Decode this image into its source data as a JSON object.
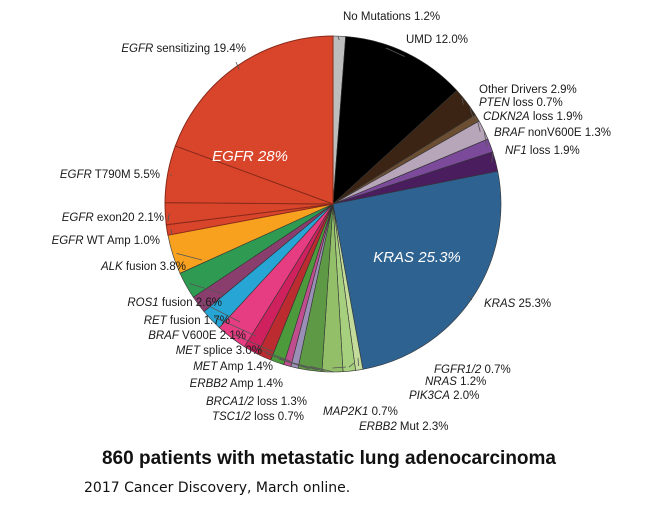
{
  "chart_data": {
    "type": "pie",
    "title": "860 patients with metastatic lung adenocarcinoma",
    "subtitle": "2017 Cancer Discovery, March online.",
    "slices": [
      {
        "gene": "",
        "suffix": "No Mutations",
        "value": 1.2,
        "color": "#bdbdbd",
        "label": "No Mutations 1.2%"
      },
      {
        "gene": "",
        "suffix": "UMD",
        "value": 12.0,
        "color": "#000000",
        "label": "UMD 12.0%"
      },
      {
        "gene": "",
        "suffix": "Other Drivers",
        "value": 2.9,
        "color": "#3b2414",
        "label": "Other Drivers 2.9%"
      },
      {
        "gene": "PTEN",
        "suffix": "loss",
        "value": 0.7,
        "color": "#6b4e32",
        "label": "PTEN loss 0.7%"
      },
      {
        "gene": "CDKN2A",
        "suffix": "loss",
        "value": 1.9,
        "color": "#b7a6b9",
        "label": "CDKN2A loss 1.9%"
      },
      {
        "gene": "BRAF",
        "suffix": "nonV600E",
        "value": 1.3,
        "color": "#7b4a9a",
        "label": "BRAF nonV600E 1.3%"
      },
      {
        "gene": "NF1",
        "suffix": "loss",
        "value": 1.9,
        "color": "#4a1d5e",
        "label": "NF1 loss 1.9%"
      },
      {
        "gene": "KRAS",
        "suffix": "",
        "value": 25.3,
        "color": "#2e6291",
        "label": "KRAS 25.3%"
      },
      {
        "gene": "FGFR1/2",
        "suffix": "",
        "value": 0.7,
        "color": "#c3dc9a",
        "label": "FGFR1/2 0.7%"
      },
      {
        "gene": "NRAS",
        "suffix": "",
        "value": 1.2,
        "color": "#a6cf7e",
        "label": "NRAS 1.2%"
      },
      {
        "gene": "PIK3CA",
        "suffix": "",
        "value": 2.0,
        "color": "#93bf68",
        "label": "PIK3CA 2.0%"
      },
      {
        "gene": "ERBB2",
        "suffix": "Mut",
        "value": 2.3,
        "color": "#5e9a45",
        "label": "ERBB2 Mut 2.3%"
      },
      {
        "gene": "MAP2K1",
        "suffix": "",
        "value": 0.7,
        "color": "#9a8fb6",
        "label": "MAP2K1 0.7%"
      },
      {
        "gene": "TSC1/2",
        "suffix": "loss",
        "value": 0.7,
        "color": "#c04d8e",
        "label": "TSC1/2 loss 0.7%"
      },
      {
        "gene": "BRCA1/2",
        "suffix": "loss",
        "value": 1.3,
        "color": "#4c9a3c",
        "label": "BRCA1/2 loss 1.3%"
      },
      {
        "gene": "ERBB2",
        "suffix": "Amp",
        "value": 1.4,
        "color": "#bb2b2f",
        "label": "ERBB2 Amp 1.4%"
      },
      {
        "gene": "MET",
        "suffix": "Amp",
        "value": 1.4,
        "color": "#d0215f",
        "label": "MET Amp 1.4%"
      },
      {
        "gene": "MET",
        "suffix": "splice",
        "value": 3.0,
        "color": "#e63d82",
        "label": "MET splice 3.0%"
      },
      {
        "gene": "BRAF",
        "suffix": "V600E",
        "value": 2.1,
        "color": "#27a6d6",
        "label": "BRAF V600E 2.1%"
      },
      {
        "gene": "RET",
        "suffix": "fusion",
        "value": 1.7,
        "color": "#8a3e6e",
        "label": "RET fusion 1.7%"
      },
      {
        "gene": "ROS1",
        "suffix": "fusion",
        "value": 2.6,
        "color": "#2f9a52",
        "label": "ROS1 fusion 2.6%"
      },
      {
        "gene": "ALK",
        "suffix": "fusion",
        "value": 3.8,
        "color": "#f7a11e",
        "label": "ALK fusion 3.8%"
      },
      {
        "gene": "EGFR",
        "suffix": "WT Amp",
        "value": 1.0,
        "color": "#d9452b",
        "label": "EGFR WT Amp 1.0%"
      },
      {
        "gene": "EGFR",
        "suffix": "exon20",
        "value": 2.1,
        "color": "#d9452b",
        "label": "EGFR exon20 2.1%"
      },
      {
        "gene": "EGFR",
        "suffix": "T790M",
        "value": 5.5,
        "color": "#d9452b",
        "label": "EGFR T790M 5.5%"
      },
      {
        "gene": "EGFR",
        "suffix": "sensitizing",
        "value": 19.4,
        "color": "#d9452b",
        "label": "EGFR sensitizing 19.4%"
      }
    ],
    "inner_labels": [
      {
        "text": "EGFR 28%"
      },
      {
        "text": "KRAS 25.3%"
      }
    ]
  }
}
